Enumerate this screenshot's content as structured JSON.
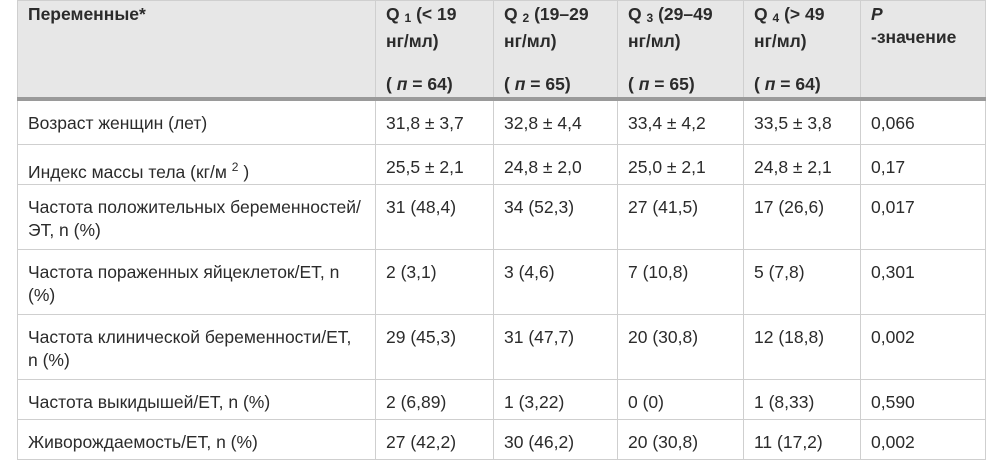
{
  "table": {
    "header": [
      {
        "label": "Переменные*"
      },
      {
        "q": "Q",
        "sub": "1",
        "range": "(< 19 нг/мл)",
        "pre": "(",
        "sym": "п",
        "post": "= 64)"
      },
      {
        "q": "Q",
        "sub": "2",
        "range": "(19–29 нг/мл)",
        "pre": "(",
        "sym": "п",
        "post": "= 65)"
      },
      {
        "q": "Q",
        "sub": "3",
        "range": "(29–49 нг/мл)",
        "pre": "(",
        "sym": "п",
        "post": "= 65)"
      },
      {
        "q": "Q",
        "sub": "4",
        "range": "(> 49 нг/мл)",
        "pre": "(",
        "sym": "п",
        "post": "= 64)"
      },
      {
        "p": "P",
        "label": "-значение"
      }
    ],
    "rows": [
      {
        "label": "Возраст женщин (лет)",
        "cells": [
          "31,8 ± 3,7",
          "32,8 ± 4,4",
          "33,4 ± 4,2",
          "33,5 ± 3,8",
          "0,066"
        ]
      },
      {
        "label": "Индекс массы тела (кг/м",
        "sup": "2",
        "suffix": ")",
        "cells": [
          "25,5 ± 2,1",
          "24,8 ± 2,0",
          "25,0 ± 2,1",
          "24,8 ± 2,1",
          "0,17"
        ]
      },
      {
        "label": "Частота положительных беременностей/ЭТ, n (%)",
        "cells": [
          "31 (48,4)",
          "34 (52,3)",
          "27 (41,5)",
          "17 (26,6)",
          "0,017"
        ]
      },
      {
        "label": "Частота пораженных яйцеклеток/ET, n (%)",
        "cells": [
          "2 (3,1)",
          "3 (4,6)",
          "7 (10,8)",
          "5 (7,8)",
          "0,301"
        ]
      },
      {
        "label": "Частота клинической беременности/ET, n (%)",
        "cells": [
          "29 (45,3)",
          "31 (47,7)",
          "20 (30,8)",
          "12 (18,8)",
          "0,002"
        ]
      },
      {
        "label": "Частота выкидышей/ET, n (%)",
        "cells": [
          "2 (6,89)",
          "1 (3,22)",
          "0 (0)",
          "1 (8,33)",
          "0,590"
        ]
      },
      {
        "label": "Живорождаемость/ET, n (%)",
        "cells": [
          "27 (42,2)",
          "30 (46,2)",
          "20 (30,8)",
          "11 (17,2)",
          "0,002"
        ]
      }
    ]
  }
}
